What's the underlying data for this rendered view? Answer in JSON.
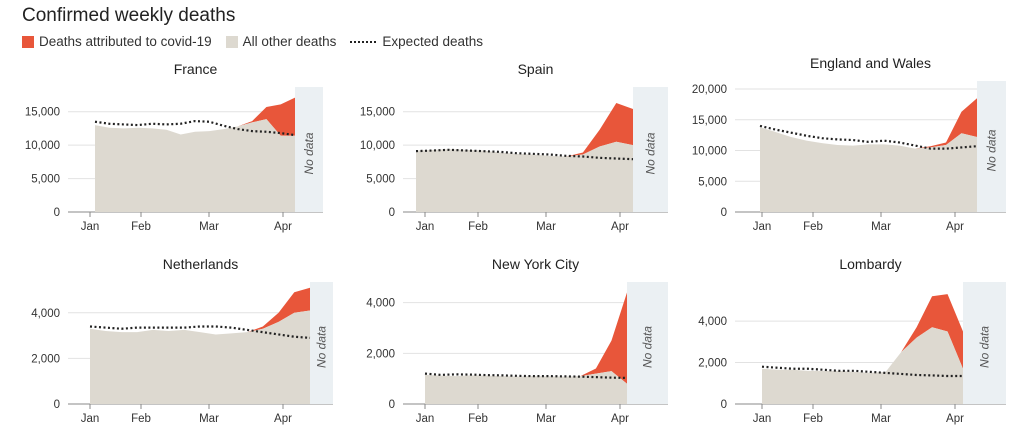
{
  "title": "Confirmed weekly deaths",
  "legend": {
    "covid": "Deaths attributed to covid-19",
    "other": "All other deaths",
    "expected": "Expected deaths"
  },
  "colors": {
    "covid": "#E8563A",
    "other": "#DDD9D0",
    "nodata": "#EBF0F3",
    "grid": "#E2E2E2"
  },
  "no_data_label": "No data",
  "months": [
    "Jan",
    "Feb",
    "Mar",
    "Apr"
  ],
  "chart_data": [
    {
      "type": "area",
      "title": "France",
      "ylim": [
        0,
        17500
      ],
      "yticks": [
        0,
        5000,
        10000,
        15000
      ],
      "ytick_labels": [
        "0",
        "5,000",
        "10,000",
        "15,000"
      ],
      "x": [
        0,
        1,
        2,
        3,
        4,
        5,
        6,
        7,
        8,
        9,
        10,
        11,
        12,
        13,
        14
      ],
      "series": [
        {
          "name": "All other deaths",
          "values": [
            13000,
            12600,
            12500,
            12600,
            12500,
            12300,
            11600,
            12000,
            12100,
            12400,
            12800,
            13400,
            13900,
            11400,
            11400
          ]
        },
        {
          "name": "Deaths attributed to covid-19",
          "values": [
            0,
            0,
            0,
            0,
            0,
            0,
            0,
            0,
            0,
            0,
            0,
            200,
            1800,
            4700,
            5700
          ]
        },
        {
          "name": "Expected deaths",
          "values": [
            13500,
            13200,
            13100,
            13000,
            13200,
            13100,
            13200,
            13600,
            13500,
            12900,
            12400,
            12100,
            12000,
            11800,
            11500
          ]
        }
      ]
    },
    {
      "type": "area",
      "title": "Spain",
      "ylim": [
        0,
        17500
      ],
      "yticks": [
        0,
        5000,
        10000,
        15000
      ],
      "ytick_labels": [
        "0",
        "5,000",
        "10,000",
        "15,000"
      ],
      "x": [
        0,
        1,
        2,
        3,
        4,
        5,
        6,
        7,
        8,
        9,
        10,
        11,
        12,
        13
      ],
      "series": [
        {
          "name": "All other deaths",
          "values": [
            9200,
            9300,
            9400,
            9300,
            9200,
            8900,
            8700,
            8600,
            8400,
            8300,
            8600,
            9800,
            10500,
            10000
          ]
        },
        {
          "name": "Deaths attributed to covid-19",
          "values": [
            0,
            0,
            0,
            0,
            0,
            0,
            0,
            0,
            0,
            0,
            300,
            2500,
            5800,
            5400
          ]
        },
        {
          "name": "Expected deaths",
          "values": [
            9100,
            9200,
            9300,
            9200,
            9100,
            9000,
            8800,
            8700,
            8600,
            8400,
            8300,
            8100,
            8000,
            7900
          ]
        }
      ]
    },
    {
      "type": "area",
      "title": "England and Wales",
      "ylim": [
        0,
        20000
      ],
      "yticks": [
        0,
        5000,
        10000,
        15000,
        20000
      ],
      "ytick_labels": [
        "0",
        "5,000",
        "10,000",
        "15,000",
        "20,000"
      ],
      "x": [
        0,
        1,
        2,
        3,
        4,
        5,
        6,
        7,
        8,
        9,
        10,
        11,
        12,
        13,
        14
      ],
      "series": [
        {
          "name": "All other deaths",
          "values": [
            13800,
            13000,
            12200,
            11600,
            11200,
            10900,
            10800,
            11000,
            11000,
            10800,
            10300,
            10500,
            10900,
            12800,
            12200
          ]
        },
        {
          "name": "Deaths attributed to covid-19",
          "values": [
            0,
            0,
            0,
            0,
            0,
            0,
            0,
            0,
            0,
            0,
            0,
            200,
            400,
            3500,
            6300
          ]
        },
        {
          "name": "Expected deaths",
          "values": [
            14000,
            13400,
            12900,
            12400,
            12000,
            11800,
            11700,
            11400,
            11600,
            11300,
            10800,
            10300,
            10300,
            10500,
            10700
          ]
        }
      ]
    },
    {
      "type": "area",
      "title": "Netherlands",
      "ylim": [
        0,
        5000
      ],
      "yticks": [
        0,
        2000,
        4000
      ],
      "ytick_labels": [
        "0",
        "2,000",
        "4,000"
      ],
      "x": [
        0,
        1,
        2,
        3,
        4,
        5,
        6,
        7,
        8,
        9,
        10,
        11,
        12,
        13,
        14
      ],
      "series": [
        {
          "name": "All other deaths",
          "values": [
            3300,
            3200,
            3150,
            3150,
            3250,
            3200,
            3250,
            3150,
            3050,
            3100,
            3150,
            3300,
            3600,
            4000,
            4100
          ]
        },
        {
          "name": "Deaths attributed to covid-19",
          "values": [
            0,
            0,
            0,
            0,
            0,
            0,
            0,
            0,
            0,
            0,
            0,
            100,
            400,
            900,
            1000
          ]
        },
        {
          "name": "Expected deaths",
          "values": [
            3400,
            3350,
            3300,
            3350,
            3350,
            3350,
            3350,
            3400,
            3400,
            3350,
            3250,
            3150,
            3050,
            2950,
            2900
          ]
        }
      ]
    },
    {
      "type": "area",
      "title": "New York City",
      "ylim": [
        0,
        4500
      ],
      "yticks": [
        0,
        2000,
        4000
      ],
      "ytick_labels": [
        "0",
        "2,000",
        "4,000"
      ],
      "x": [
        0,
        1,
        2,
        3,
        4,
        5,
        6,
        7,
        8,
        9,
        10,
        11,
        12,
        13
      ],
      "series": [
        {
          "name": "All other deaths",
          "values": [
            1150,
            1120,
            1100,
            1130,
            1120,
            1100,
            1080,
            1100,
            1090,
            1080,
            1100,
            1200,
            1300,
            800
          ]
        },
        {
          "name": "Deaths attributed to covid-19",
          "values": [
            0,
            0,
            0,
            0,
            0,
            0,
            0,
            0,
            0,
            0,
            0,
            200,
            1200,
            3600
          ]
        },
        {
          "name": "Expected deaths",
          "values": [
            1200,
            1150,
            1170,
            1160,
            1140,
            1130,
            1110,
            1100,
            1100,
            1090,
            1080,
            1060,
            1040,
            1030
          ]
        }
      ]
    },
    {
      "type": "area",
      "title": "Lombardy",
      "ylim": [
        0,
        5500
      ],
      "yticks": [
        0,
        2000,
        4000
      ],
      "ytick_labels": [
        "0",
        "2,000",
        "4,000"
      ],
      "x": [
        0,
        1,
        2,
        3,
        4,
        5,
        6,
        7,
        8,
        9,
        10,
        11,
        12,
        13
      ],
      "series": [
        {
          "name": "All other deaths",
          "values": [
            1700,
            1650,
            1650,
            1600,
            1600,
            1600,
            1550,
            1500,
            1550,
            2500,
            3200,
            3700,
            3500,
            1700
          ]
        },
        {
          "name": "Deaths attributed to covid-19",
          "values": [
            0,
            0,
            0,
            0,
            0,
            0,
            0,
            0,
            0,
            0,
            500,
            1500,
            1800,
            1800
          ]
        },
        {
          "name": "Expected deaths",
          "values": [
            1800,
            1750,
            1700,
            1700,
            1650,
            1600,
            1600,
            1550,
            1500,
            1450,
            1400,
            1380,
            1350,
            1350
          ]
        }
      ]
    }
  ]
}
